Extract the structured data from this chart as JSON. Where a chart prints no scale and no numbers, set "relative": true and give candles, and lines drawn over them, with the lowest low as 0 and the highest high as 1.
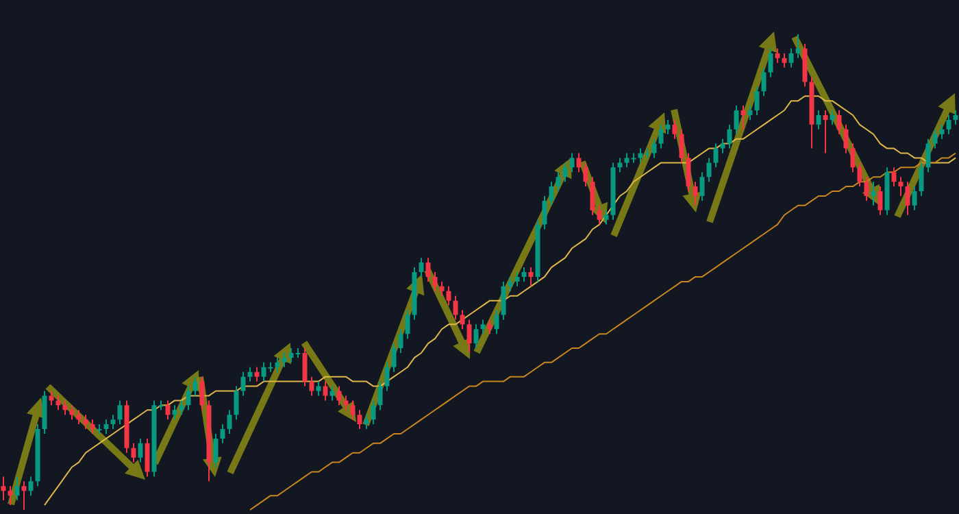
{
  "chart_data": {
    "type": "candlestick",
    "relative": true,
    "categories": [
      null,
      null,
      null,
      null,
      null,
      null,
      null,
      null,
      null,
      null,
      null,
      null,
      null,
      null,
      null,
      null,
      null,
      null,
      null,
      null,
      null,
      null,
      null,
      null,
      null,
      null,
      null,
      null,
      null,
      null,
      null,
      null,
      null,
      null,
      null,
      null,
      null,
      null,
      null,
      null,
      null,
      null,
      null,
      null,
      null,
      null,
      null,
      null,
      null,
      null,
      null,
      null,
      null,
      null,
      null,
      null,
      null,
      null,
      null,
      null,
      null,
      null,
      null,
      null,
      null,
      null,
      null,
      null,
      null,
      null,
      null,
      null,
      null,
      null,
      null,
      null,
      null,
      null,
      null,
      null,
      null,
      null,
      null,
      null,
      null,
      null,
      null,
      null,
      null,
      null,
      null,
      null,
      null,
      null,
      null,
      null,
      null,
      null,
      null,
      null,
      null,
      null,
      null,
      null,
      null,
      null,
      null,
      null,
      null,
      null,
      null,
      null,
      null,
      null,
      null,
      null,
      null,
      null,
      null,
      null,
      null,
      null,
      null,
      null,
      null,
      null,
      null,
      null,
      null,
      null,
      null,
      null,
      null,
      null,
      null,
      null,
      null,
      null,
      null,
      null
    ],
    "ohlc": [
      [
        0.05,
        0.07,
        0.02,
        0.04
      ],
      [
        0.04,
        0.05,
        0.01,
        0.03
      ],
      [
        0.03,
        0.07,
        0.02,
        0.05
      ],
      [
        0.05,
        0.06,
        0,
        0.04
      ],
      [
        0.04,
        0.07,
        0.03,
        0.06
      ],
      [
        0.06,
        0.18,
        0.05,
        0.17
      ],
      [
        0.17,
        0.25,
        0.16,
        0.24
      ],
      [
        0.24,
        0.25,
        0.22,
        0.23
      ],
      [
        0.23,
        0.24,
        0.21,
        0.22
      ],
      [
        0.22,
        0.23,
        0.2,
        0.21
      ],
      [
        0.21,
        0.22,
        0.19,
        0.2
      ],
      [
        0.2,
        0.21,
        0.18,
        0.19
      ],
      [
        0.19,
        0.2,
        0.17,
        0.18
      ],
      [
        0.18,
        0.19,
        0.16,
        0.17
      ],
      [
        0.17,
        0.18,
        0.16,
        0.17
      ],
      [
        0.17,
        0.19,
        0.16,
        0.18
      ],
      [
        0.18,
        0.2,
        0.17,
        0.19
      ],
      [
        0.19,
        0.23,
        0.18,
        0.22
      ],
      [
        0.22,
        0.23,
        0.12,
        0.13
      ],
      [
        0.13,
        0.14,
        0.1,
        0.11
      ],
      [
        0.11,
        0.15,
        0.1,
        0.14
      ],
      [
        0.14,
        0.15,
        0.07,
        0.08
      ],
      [
        0.08,
        0.23,
        0.07,
        0.22
      ],
      [
        0.22,
        0.23,
        0.21,
        0.22
      ],
      [
        0.22,
        0.23,
        0.19,
        0.2
      ],
      [
        0.2,
        0.22,
        0.19,
        0.21
      ],
      [
        0.21,
        0.23,
        0.2,
        0.22
      ],
      [
        0.22,
        0.26,
        0.21,
        0.25
      ],
      [
        0.25,
        0.28,
        0.24,
        0.27
      ],
      [
        0.27,
        0.28,
        0.21,
        0.22
      ],
      [
        0.22,
        0.23,
        0.06,
        0.1
      ],
      [
        0.1,
        0.16,
        0.09,
        0.15
      ],
      [
        0.15,
        0.18,
        0.14,
        0.17
      ],
      [
        0.17,
        0.21,
        0.16,
        0.2
      ],
      [
        0.2,
        0.26,
        0.19,
        0.25
      ],
      [
        0.25,
        0.29,
        0.24,
        0.28
      ],
      [
        0.28,
        0.3,
        0.27,
        0.29
      ],
      [
        0.29,
        0.3,
        0.27,
        0.28
      ],
      [
        0.28,
        0.31,
        0.27,
        0.3
      ],
      [
        0.3,
        0.31,
        0.29,
        0.3
      ],
      [
        0.3,
        0.32,
        0.29,
        0.31
      ],
      [
        0.31,
        0.33,
        0.3,
        0.32
      ],
      [
        0.32,
        0.34,
        0.31,
        0.33
      ],
      [
        0.33,
        0.34,
        0.32,
        0.33
      ],
      [
        0.33,
        0.34,
        0.26,
        0.27
      ],
      [
        0.27,
        0.28,
        0.24,
        0.25
      ],
      [
        0.25,
        0.27,
        0.24,
        0.26
      ],
      [
        0.26,
        0.27,
        0.23,
        0.24
      ],
      [
        0.24,
        0.26,
        0.23,
        0.25
      ],
      [
        0.25,
        0.26,
        0.22,
        0.23
      ],
      [
        0.23,
        0.24,
        0.21,
        0.22
      ],
      [
        0.22,
        0.23,
        0.19,
        0.2
      ],
      [
        0.2,
        0.21,
        0.17,
        0.18
      ],
      [
        0.18,
        0.2,
        0.17,
        0.19
      ],
      [
        0.19,
        0.23,
        0.18,
        0.22
      ],
      [
        0.22,
        0.27,
        0.21,
        0.26
      ],
      [
        0.26,
        0.31,
        0.25,
        0.3
      ],
      [
        0.3,
        0.35,
        0.29,
        0.34
      ],
      [
        0.34,
        0.38,
        0.33,
        0.37
      ],
      [
        0.37,
        0.42,
        0.36,
        0.41
      ],
      [
        0.41,
        0.51,
        0.4,
        0.5
      ],
      [
        0.5,
        0.53,
        0.49,
        0.52
      ],
      [
        0.52,
        0.53,
        0.48,
        0.49
      ],
      [
        0.49,
        0.5,
        0.46,
        0.47
      ],
      [
        0.47,
        0.48,
        0.45,
        0.46
      ],
      [
        0.46,
        0.47,
        0.43,
        0.44
      ],
      [
        0.44,
        0.45,
        0.4,
        0.41
      ],
      [
        0.41,
        0.42,
        0.38,
        0.39
      ],
      [
        0.39,
        0.4,
        0.33,
        0.35
      ],
      [
        0.35,
        0.39,
        0.34,
        0.38
      ],
      [
        0.38,
        0.4,
        0.37,
        0.39
      ],
      [
        0.39,
        0.4,
        0.37,
        0.38
      ],
      [
        0.38,
        0.42,
        0.37,
        0.41
      ],
      [
        0.41,
        0.48,
        0.4,
        0.47
      ],
      [
        0.47,
        0.49,
        0.46,
        0.48
      ],
      [
        0.48,
        0.5,
        0.47,
        0.49
      ],
      [
        0.49,
        0.51,
        0.48,
        0.5
      ],
      [
        0.5,
        0.51,
        0.47,
        0.49
      ],
      [
        0.49,
        0.61,
        0.48,
        0.6
      ],
      [
        0.6,
        0.66,
        0.59,
        0.65
      ],
      [
        0.65,
        0.69,
        0.64,
        0.68
      ],
      [
        0.68,
        0.71,
        0.67,
        0.7
      ],
      [
        0.7,
        0.73,
        0.69,
        0.72
      ],
      [
        0.72,
        0.75,
        0.71,
        0.74
      ],
      [
        0.74,
        0.75,
        0.71,
        0.72
      ],
      [
        0.72,
        0.73,
        0.68,
        0.69
      ],
      [
        0.69,
        0.7,
        0.62,
        0.63
      ],
      [
        0.63,
        0.64,
        0.6,
        0.61
      ],
      [
        0.61,
        0.63,
        0.6,
        0.62
      ],
      [
        0.62,
        0.73,
        0.61,
        0.72
      ],
      [
        0.72,
        0.74,
        0.71,
        0.73
      ],
      [
        0.73,
        0.75,
        0.72,
        0.74
      ],
      [
        0.74,
        0.75,
        0.73,
        0.74
      ],
      [
        0.74,
        0.76,
        0.73,
        0.75
      ],
      [
        0.75,
        0.76,
        0.74,
        0.75
      ],
      [
        0.75,
        0.78,
        0.74,
        0.77
      ],
      [
        0.77,
        0.81,
        0.76,
        0.8
      ],
      [
        0.8,
        0.82,
        0.79,
        0.81
      ],
      [
        0.81,
        0.82,
        0.78,
        0.79
      ],
      [
        0.79,
        0.8,
        0.73,
        0.74
      ],
      [
        0.74,
        0.75,
        0.67,
        0.68
      ],
      [
        0.68,
        0.69,
        0.64,
        0.66
      ],
      [
        0.66,
        0.71,
        0.65,
        0.7
      ],
      [
        0.7,
        0.74,
        0.69,
        0.73
      ],
      [
        0.73,
        0.77,
        0.72,
        0.76
      ],
      [
        0.76,
        0.78,
        0.75,
        0.77
      ],
      [
        0.77,
        0.81,
        0.76,
        0.8
      ],
      [
        0.8,
        0.85,
        0.79,
        0.84
      ],
      [
        0.84,
        0.85,
        0.8,
        0.83
      ],
      [
        0.83,
        0.85,
        0.82,
        0.84
      ],
      [
        0.84,
        0.89,
        0.83,
        0.88
      ],
      [
        0.88,
        0.93,
        0.87,
        0.92
      ],
      [
        0.92,
        0.97,
        0.91,
        0.96
      ],
      [
        0.96,
        0.97,
        0.94,
        0.95
      ],
      [
        0.95,
        0.96,
        0.93,
        0.94
      ],
      [
        0.94,
        0.97,
        0.93,
        0.96
      ],
      [
        0.96,
        1,
        0.95,
        0.97
      ],
      [
        0.97,
        0.98,
        0.89,
        0.9
      ],
      [
        0.9,
        0.91,
        0.76,
        0.81
      ],
      [
        0.81,
        0.84,
        0.8,
        0.83
      ],
      [
        0.83,
        0.84,
        0.75,
        0.82
      ],
      [
        0.82,
        0.84,
        0.81,
        0.83
      ],
      [
        0.83,
        0.84,
        0.79,
        0.8
      ],
      [
        0.8,
        0.81,
        0.75,
        0.76
      ],
      [
        0.76,
        0.77,
        0.71,
        0.72
      ],
      [
        0.72,
        0.73,
        0.68,
        0.69
      ],
      [
        0.69,
        0.7,
        0.65,
        0.66
      ],
      [
        0.66,
        0.69,
        0.64,
        0.67
      ],
      [
        0.67,
        0.68,
        0.62,
        0.63
      ],
      [
        0.63,
        0.72,
        0.62,
        0.71
      ],
      [
        0.71,
        0.72,
        0.68,
        0.69
      ],
      [
        0.69,
        0.7,
        0.66,
        0.68
      ],
      [
        0.68,
        0.69,
        0.62,
        0.64
      ],
      [
        0.64,
        0.68,
        0.63,
        0.67
      ],
      [
        0.67,
        0.73,
        0.66,
        0.72
      ],
      [
        0.72,
        0.78,
        0.71,
        0.77
      ],
      [
        0.77,
        0.8,
        0.76,
        0.79
      ],
      [
        0.79,
        0.81,
        0.78,
        0.8
      ],
      [
        0.8,
        0.83,
        0.79,
        0.82
      ],
      [
        0.82,
        0.84,
        0.81,
        0.83
      ]
    ],
    "series": [
      {
        "type": "line",
        "color": "#e0b84a",
        "values": [
          null,
          null,
          null,
          null,
          null,
          null,
          0.01,
          0.03,
          0.05,
          0.07,
          0.09,
          0.1,
          0.12,
          0.13,
          0.14,
          0.15,
          0.16,
          0.17,
          0.18,
          0.19,
          0.2,
          0.21,
          0.21,
          0.22,
          0.22,
          0.23,
          0.23,
          0.24,
          0.24,
          0.24,
          0.24,
          0.25,
          0.25,
          0.25,
          0.25,
          0.26,
          0.26,
          0.26,
          0.27,
          0.27,
          0.27,
          0.27,
          0.27,
          0.27,
          0.27,
          0.27,
          0.27,
          0.28,
          0.28,
          0.28,
          0.28,
          0.27,
          0.27,
          0.27,
          0.26,
          0.26,
          0.27,
          0.28,
          0.29,
          0.3,
          0.32,
          0.33,
          0.35,
          0.36,
          0.38,
          0.39,
          0.39,
          0.4,
          0.41,
          0.42,
          0.43,
          0.44,
          0.44,
          0.44,
          0.45,
          0.45,
          0.46,
          0.47,
          0.48,
          0.49,
          0.51,
          0.52,
          0.53,
          0.55,
          0.56,
          0.57,
          0.59,
          0.6,
          0.62,
          0.64,
          0.66,
          0.67,
          0.69,
          0.7,
          0.71,
          0.72,
          0.73,
          0.73,
          0.73,
          0.73,
          0.73,
          0.74,
          0.75,
          0.76,
          0.76,
          0.77,
          0.77,
          0.78,
          0.78,
          0.79,
          0.8,
          0.81,
          0.82,
          0.83,
          0.84,
          0.86,
          0.86,
          0.87,
          0.87,
          0.87,
          0.86,
          0.86,
          0.85,
          0.84,
          0.83,
          0.81,
          0.8,
          0.79,
          0.77,
          0.76,
          0.76,
          0.75,
          0.75,
          0.74,
          0.74,
          0.73,
          0.73,
          0.73,
          0.73,
          0.74
        ]
      },
      {
        "type": "line",
        "color": "#c8861e",
        "values": [
          null,
          null,
          null,
          null,
          null,
          null,
          null,
          null,
          null,
          null,
          null,
          null,
          null,
          null,
          null,
          null,
          null,
          null,
          null,
          null,
          null,
          null,
          null,
          null,
          null,
          null,
          null,
          null,
          null,
          null,
          null,
          null,
          null,
          null,
          null,
          null,
          0,
          0.01,
          0.02,
          0.03,
          0.03,
          0.04,
          0.05,
          0.06,
          0.07,
          0.08,
          0.08,
          0.09,
          0.1,
          0.1,
          0.11,
          0.12,
          0.12,
          0.13,
          0.14,
          0.14,
          0.15,
          0.16,
          0.16,
          0.17,
          0.18,
          0.19,
          0.2,
          0.21,
          0.22,
          0.23,
          0.24,
          0.25,
          0.26,
          0.26,
          0.27,
          0.27,
          0.27,
          0.27,
          0.28,
          0.28,
          0.28,
          0.29,
          0.3,
          0.31,
          0.31,
          0.32,
          0.33,
          0.34,
          0.34,
          0.35,
          0.36,
          0.37,
          0.37,
          0.38,
          0.39,
          0.4,
          0.41,
          0.42,
          0.43,
          0.44,
          0.45,
          0.46,
          0.47,
          0.48,
          0.48,
          0.49,
          0.49,
          0.5,
          0.51,
          0.52,
          0.53,
          0.54,
          0.55,
          0.56,
          0.57,
          0.58,
          0.59,
          0.6,
          0.62,
          0.63,
          0.64,
          0.64,
          0.65,
          0.66,
          0.66,
          0.67,
          0.67,
          0.68,
          0.68,
          0.69,
          0.69,
          0.7,
          0.7,
          0.71,
          0.71,
          0.72,
          0.72,
          0.72,
          0.73,
          0.73,
          0.73,
          0.74,
          0.74,
          0.75
        ]
      }
    ]
  }
}
